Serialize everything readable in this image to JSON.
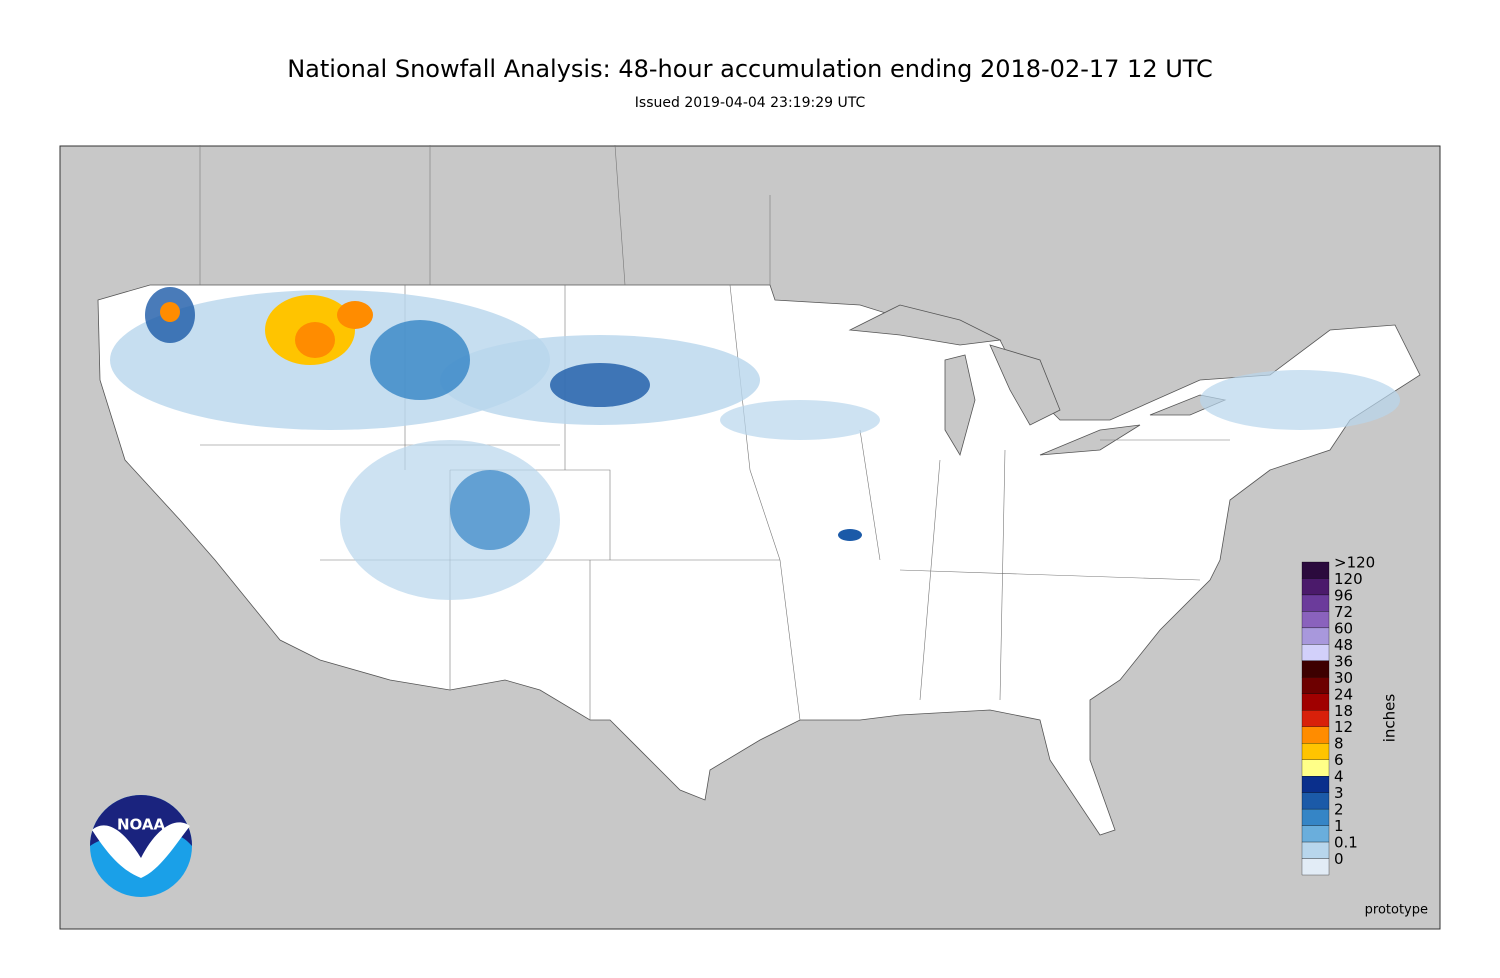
{
  "header": {
    "title": "National Snowfall Analysis: 48-hour accumulation ending 2018-02-17 12 UTC",
    "subtitle": "Issued 2019-04-04 23:19:29 UTC"
  },
  "legend": {
    "unit": "inches",
    "entries": [
      {
        "label": ">120",
        "color": "#2b0a3d"
      },
      {
        "label": "120",
        "color": "#4b1a6b"
      },
      {
        "label": "96",
        "color": "#6b3b9b"
      },
      {
        "label": "72",
        "color": "#8a62bd"
      },
      {
        "label": "60",
        "color": "#a898dc"
      },
      {
        "label": "48",
        "color": "#d2d0fa"
      },
      {
        "label": "36",
        "color": "#3d0000"
      },
      {
        "label": "30",
        "color": "#6d0000"
      },
      {
        "label": "24",
        "color": "#a00000"
      },
      {
        "label": "18",
        "color": "#d8200a"
      },
      {
        "label": "12",
        "color": "#ff8c00"
      },
      {
        "label": "8",
        "color": "#ffc400"
      },
      {
        "label": "6",
        "color": "#ffff88"
      },
      {
        "label": "4",
        "color": "#0a2f8c"
      },
      {
        "label": "3",
        "color": "#1b5aa8"
      },
      {
        "label": "2",
        "color": "#3585c6"
      },
      {
        "label": "1",
        "color": "#6aaedc"
      },
      {
        "label": "0.1",
        "color": "#b8d6ec"
      },
      {
        "label": "0",
        "color": "#e2ecf6"
      }
    ]
  },
  "footer": {
    "note": "prototype",
    "logo": "NOAA"
  }
}
